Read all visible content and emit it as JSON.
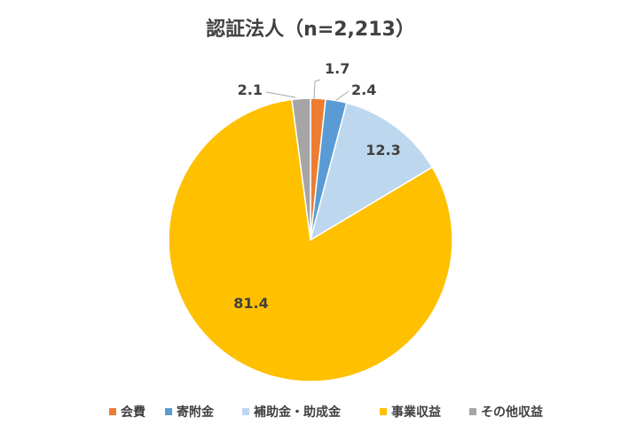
{
  "chart_data": {
    "type": "pie",
    "title": "認証法人（n=2,213）",
    "categories": [
      "会費",
      "寄附金",
      "補助金・助成金",
      "事業収益",
      "その他収益"
    ],
    "values": [
      1.7,
      2.4,
      12.3,
      81.4,
      2.1
    ],
    "value_labels": [
      "1.7",
      "2.4",
      "12.3",
      "81.4",
      "2.1"
    ],
    "colors": [
      "#ED7D31",
      "#5B9BD5",
      "#BDD7EE",
      "#FFC000",
      "#A5A5A5"
    ],
    "start_angle_deg": 0,
    "direction": "clockwise",
    "legend_position": "bottom"
  }
}
